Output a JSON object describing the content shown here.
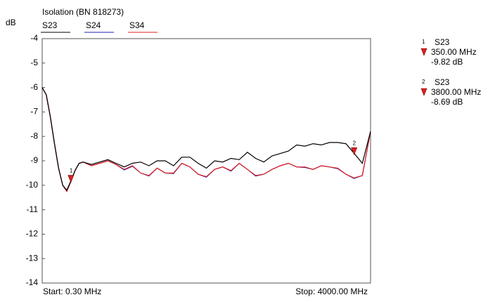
{
  "chart_data": {
    "type": "line",
    "title": "Isolation (BN 818273)",
    "y_label": "dB",
    "start_label": "Start: 0.30 MHz",
    "stop_label": "Stop: 4000.00 MHz",
    "x": [
      0.3,
      50,
      100,
      150,
      200,
      250,
      300,
      350,
      400,
      450,
      500,
      600,
      700,
      800,
      900,
      1000,
      1100,
      1200,
      1300,
      1400,
      1500,
      1600,
      1700,
      1800,
      1900,
      2000,
      2100,
      2200,
      2300,
      2400,
      2500,
      2600,
      2700,
      2800,
      2900,
      3000,
      3100,
      3200,
      3300,
      3400,
      3500,
      3600,
      3700,
      3800,
      3900,
      4000
    ],
    "series": [
      {
        "name": "S23",
        "color": "#000000",
        "values": [
          -6.0,
          -6.3,
          -7.2,
          -8.3,
          -9.3,
          -10.0,
          -10.2,
          -9.82,
          -9.4,
          -9.1,
          -9.05,
          -9.15,
          -9.05,
          -8.95,
          -9.1,
          -9.25,
          -9.1,
          -9.05,
          -9.2,
          -9.0,
          -9.0,
          -9.2,
          -8.85,
          -8.85,
          -9.1,
          -9.3,
          -9.0,
          -9.05,
          -8.9,
          -8.95,
          -8.65,
          -8.9,
          -9.05,
          -8.8,
          -8.7,
          -8.6,
          -8.35,
          -8.4,
          -8.3,
          -8.35,
          -8.25,
          -8.25,
          -8.3,
          -8.69,
          -9.1,
          -7.8
        ]
      },
      {
        "name": "S24",
        "color": "#1f1fb4",
        "values": [
          -6.0,
          -6.3,
          -7.2,
          -8.3,
          -9.3,
          -10.0,
          -10.25,
          -9.85,
          -9.4,
          -9.1,
          -9.05,
          -9.2,
          -9.1,
          -9.0,
          -9.15,
          -9.37,
          -9.22,
          -9.5,
          -9.62,
          -9.3,
          -9.5,
          -9.52,
          -9.1,
          -9.25,
          -9.55,
          -9.67,
          -9.35,
          -9.25,
          -9.42,
          -9.1,
          -9.35,
          -9.62,
          -9.55,
          -9.35,
          -9.2,
          -9.1,
          -9.25,
          -9.27,
          -9.35,
          -9.2,
          -9.25,
          -9.32,
          -9.55,
          -9.72,
          -9.6,
          -7.8
        ]
      },
      {
        "name": "S34",
        "color": "#e02020",
        "values": [
          -6.0,
          -6.3,
          -7.2,
          -8.3,
          -9.3,
          -10.0,
          -10.25,
          -9.85,
          -9.4,
          -9.1,
          -9.05,
          -9.2,
          -9.1,
          -9.0,
          -9.15,
          -9.35,
          -9.2,
          -9.5,
          -9.6,
          -9.3,
          -9.5,
          -9.5,
          -9.1,
          -9.25,
          -9.55,
          -9.65,
          -9.35,
          -9.25,
          -9.4,
          -9.1,
          -9.35,
          -9.6,
          -9.55,
          -9.35,
          -9.2,
          -9.1,
          -9.25,
          -9.25,
          -9.35,
          -9.2,
          -9.25,
          -9.3,
          -9.55,
          -9.7,
          -9.6,
          -7.8
        ]
      }
    ],
    "markers": [
      {
        "number": "1",
        "series": "S23",
        "frequency_label": "350.00 MHz",
        "value_label": "-9.82 dB",
        "x": 350,
        "value": -9.82
      },
      {
        "number": "2",
        "series": "S23",
        "frequency_label": "3800.00 MHz",
        "value_label": "-8.69 dB",
        "x": 3800,
        "value": -8.69
      }
    ],
    "xlim": [
      0.3,
      4000
    ],
    "ylim": [
      -14,
      -4
    ],
    "yticks": [
      -14,
      -13,
      -12,
      -11,
      -10,
      -9,
      -8,
      -7,
      -6,
      -5,
      -4
    ]
  }
}
